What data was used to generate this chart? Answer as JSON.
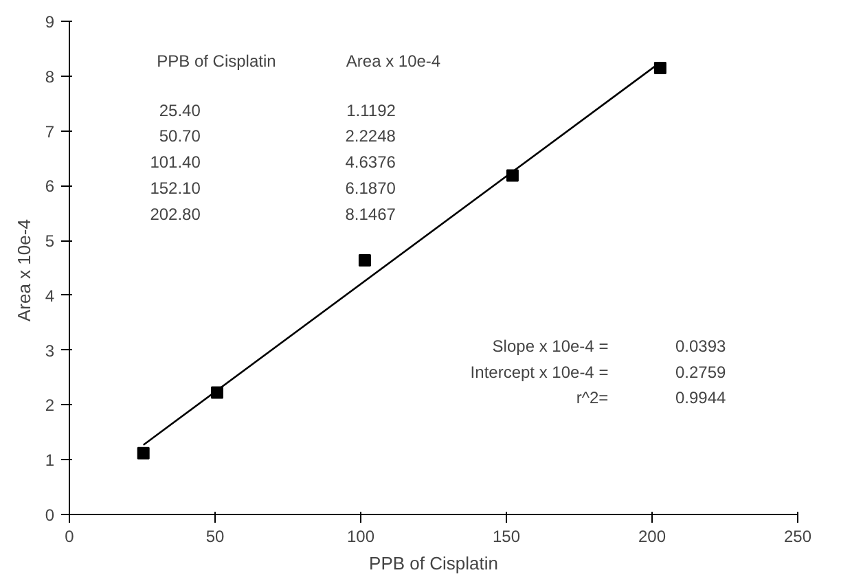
{
  "chart_data": {
    "type": "scatter",
    "xlabel": "PPB of Cisplatin",
    "ylabel": "Area  x 10e-4",
    "x": [
      25.4,
      50.7,
      101.4,
      152.1,
      202.8
    ],
    "series": [
      {
        "color": "#000000",
        "values": [
          1.1192,
          2.2248,
          4.6376,
          6.187,
          8.1467
        ],
        "marker": "square"
      },
      {
        "type": "line",
        "color": "#000000",
        "x": [
          25.4,
          202.8
        ],
        "values": [
          1.27,
          8.25
        ],
        "marker": "none"
      }
    ],
    "xlim": [
      0,
      250
    ],
    "xticks": [
      0,
      50,
      100,
      150,
      200,
      250
    ],
    "ylim": [
      0,
      9
    ],
    "yticks": [
      0,
      1,
      2,
      3,
      4,
      5,
      6,
      7,
      8,
      9
    ],
    "grid": false,
    "annotations": [
      "PPB of Cisplatin",
      "Area  x 10e-4",
      "25.40\n50.70\n101.40\n152.10\n202.80",
      "1.1192\n2.2248\n4.6376\n6.1870\n8.1467",
      "Slope x 10e-4 =\nIntercept x 10e-4 =\nr^2=",
      "0.0393\n0.2759\n0.9944"
    ]
  }
}
